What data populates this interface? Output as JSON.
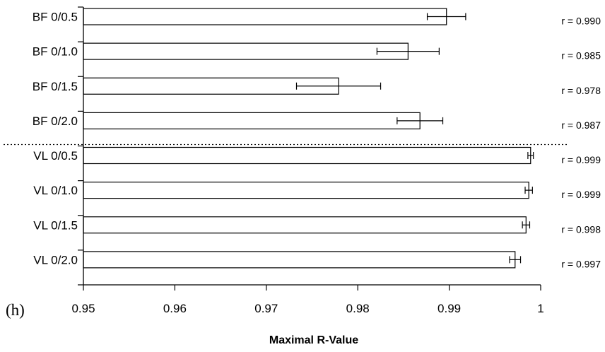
{
  "panel_label": "(h)",
  "chart_data": {
    "type": "bar",
    "orientation": "horizontal",
    "title": "",
    "xlabel": "Maximal R-Value",
    "ylabel": "",
    "xlim": [
      0.95,
      1.0
    ],
    "x_ticks": [
      0.95,
      0.96,
      0.97,
      0.98,
      0.99,
      1.0
    ],
    "x_tick_labels": [
      "0.95",
      "0.96",
      "0.97",
      "0.98",
      "0.99",
      "1"
    ],
    "grid": false,
    "separator": "dotted line between BF 0/2.0 and VL 0/0.5",
    "bar_color": "#ffffff",
    "edge_color": "#000000",
    "categories": [
      "BF 0/0.5",
      "BF 0/1.0",
      "BF 0/1.5",
      "BF 0/2.0",
      "VL 0/0.5",
      "VL 0/1.0",
      "VL 0/1.5",
      "VL 0/2.0"
    ],
    "values": [
      0.9897,
      0.9855,
      0.9779,
      0.9868,
      0.9989,
      0.9987,
      0.9984,
      0.9972
    ],
    "error": [
      0.0021,
      0.0034,
      0.0046,
      0.0025,
      0.0003,
      0.0004,
      0.0004,
      0.0006
    ],
    "annotations": [
      "r = 0.990",
      "r = 0.985",
      "r = 0.978",
      "r = 0.987",
      "r = 0.999",
      "r = 0.999",
      "r = 0.998",
      "r = 0.997"
    ]
  }
}
